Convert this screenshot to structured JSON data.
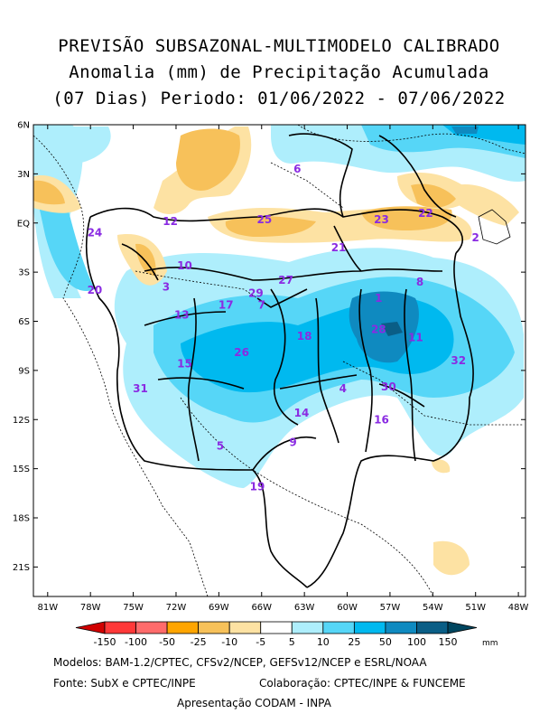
{
  "title": {
    "line1": "PREVISÃO SUBSAZONAL-MULTIMODELO CALIBRADO",
    "line2": "Anomalia (mm) de Precipitação Acumulada",
    "line3": "(07 Dias) Periodo: 01/06/2022 - 07/06/2022"
  },
  "axes": {
    "lat_labels": [
      "6N",
      "3N",
      "EQ",
      "3S",
      "6S",
      "9S",
      "12S",
      "15S",
      "18S",
      "21S"
    ],
    "lon_labels": [
      "81W",
      "78W",
      "75W",
      "72W",
      "69W",
      "66W",
      "63W",
      "60W",
      "57W",
      "54W",
      "51W",
      "48W"
    ]
  },
  "basins": [
    {
      "id": "1",
      "lon": -57.8,
      "lat": -4.6
    },
    {
      "id": "2",
      "lon": -51.0,
      "lat": -0.9
    },
    {
      "id": "3",
      "lon": -72.7,
      "lat": -3.9
    },
    {
      "id": "4",
      "lon": -60.3,
      "lat": -10.1
    },
    {
      "id": "5",
      "lon": -68.9,
      "lat": -13.6
    },
    {
      "id": "6",
      "lon": -63.5,
      "lat": 3.3
    },
    {
      "id": "7",
      "lon": -66.0,
      "lat": -5.0
    },
    {
      "id": "8",
      "lon": -54.9,
      "lat": -3.6
    },
    {
      "id": "9",
      "lon": -63.8,
      "lat": -13.4
    },
    {
      "id": "10",
      "lon": -71.4,
      "lat": -2.6
    },
    {
      "id": "11",
      "lon": -55.2,
      "lat": -7.0
    },
    {
      "id": "12",
      "lon": -72.4,
      "lat": 0.1
    },
    {
      "id": "13",
      "lon": -71.6,
      "lat": -5.6
    },
    {
      "id": "14",
      "lon": -63.2,
      "lat": -11.6
    },
    {
      "id": "15",
      "lon": -71.4,
      "lat": -8.6
    },
    {
      "id": "16",
      "lon": -57.6,
      "lat": -12.0
    },
    {
      "id": "17",
      "lon": -68.5,
      "lat": -5.0
    },
    {
      "id": "18",
      "lon": -63.0,
      "lat": -6.9
    },
    {
      "id": "19",
      "lon": -66.3,
      "lat": -16.1
    },
    {
      "id": "20",
      "lon": -77.7,
      "lat": -4.1
    },
    {
      "id": "21",
      "lon": -60.6,
      "lat": -1.5
    },
    {
      "id": "22",
      "lon": -54.5,
      "lat": 0.6
    },
    {
      "id": "23",
      "lon": -57.6,
      "lat": 0.2
    },
    {
      "id": "24",
      "lon": -77.7,
      "lat": -0.6
    },
    {
      "id": "25",
      "lon": -65.8,
      "lat": 0.2
    },
    {
      "id": "26",
      "lon": -67.4,
      "lat": -7.9
    },
    {
      "id": "27",
      "lon": -64.3,
      "lat": -3.5
    },
    {
      "id": "28",
      "lon": -57.8,
      "lat": -6.5
    },
    {
      "id": "29",
      "lon": -66.4,
      "lat": -4.3
    },
    {
      "id": "30",
      "lon": -57.1,
      "lat": -10.0
    },
    {
      "id": "31",
      "lon": -74.5,
      "lat": -10.1
    },
    {
      "id": "32",
      "lon": -52.2,
      "lat": -8.4
    }
  ],
  "colorbar": {
    "labels": [
      "-150",
      "-100",
      "-50",
      "-25",
      "-10",
      "-5",
      "5",
      "10",
      "25",
      "50",
      "100",
      "150"
    ],
    "unit": "mm",
    "colors": [
      "#d10000",
      "#ff3838",
      "#ff6b6b",
      "#ffa500",
      "#f7c15a",
      "#fde2a3",
      "#ffffff",
      "#aeeefc",
      "#56d6f7",
      "#00b9ef",
      "#0f8ac0",
      "#0a5e86",
      "#00465f"
    ]
  },
  "footer": {
    "models": "Modelos: BAM-1.2/CPTEC, CFSv2/NCEP, GEFSv12/NCEP e ESRL/NOAA",
    "source": "Fonte: SubX e CPTEC/INPE",
    "collab": "Colaboração: CPTEC/INPE & FUNCEME",
    "presentation": "Apresentação CODAM - INPA"
  }
}
